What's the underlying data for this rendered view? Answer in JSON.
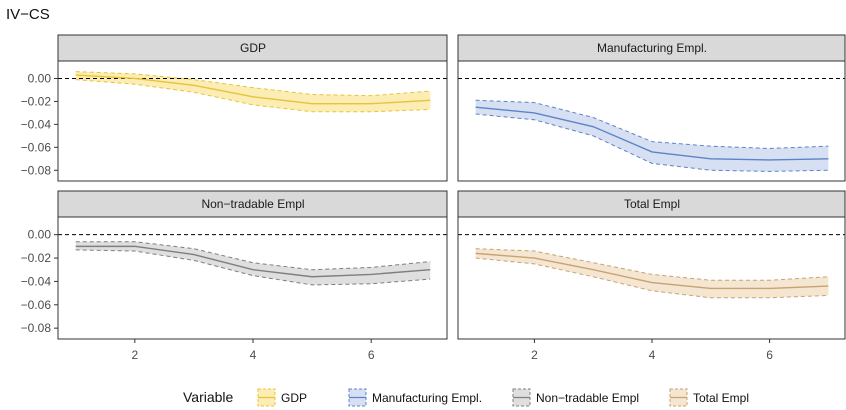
{
  "chart_data": {
    "type": "line",
    "title": "IV−CS",
    "xlabel": "",
    "ylabel": "",
    "x": [
      1,
      2,
      3,
      4,
      5,
      6,
      7
    ],
    "xlim": [
      0.7,
      7.3
    ],
    "ylim": [
      -0.085,
      0.01
    ],
    "x_ticks": [
      "2",
      "4",
      "6"
    ],
    "y_ticks": [
      "0.00",
      "−0.02",
      "−0.04",
      "−0.06",
      "−0.08"
    ],
    "reference_line": 0,
    "legend_title": "Variable",
    "legend_position": "bottom",
    "grid": false,
    "panels": [
      {
        "strip": "GDP",
        "series": "GDP",
        "color": "#E8C33A",
        "fill": "#F9E79A",
        "mean": [
          0.003,
          0.0,
          -0.006,
          -0.016,
          -0.022,
          -0.022,
          -0.019
        ],
        "lower": [
          -0.001,
          -0.005,
          -0.012,
          -0.023,
          -0.029,
          -0.029,
          -0.027
        ],
        "upper": [
          0.006,
          0.004,
          -0.001,
          -0.008,
          -0.014,
          -0.015,
          -0.011
        ]
      },
      {
        "strip": "Manufacturing Empl.",
        "series": "Manufacturing Empl.",
        "color": "#5B84C9",
        "fill": "#C9D6EE",
        "mean": [
          -0.025,
          -0.03,
          -0.042,
          -0.064,
          -0.07,
          -0.071,
          -0.07
        ],
        "lower": [
          -0.031,
          -0.036,
          -0.05,
          -0.074,
          -0.08,
          -0.081,
          -0.08
        ],
        "upper": [
          -0.019,
          -0.021,
          -0.034,
          -0.055,
          -0.059,
          -0.061,
          -0.059
        ]
      },
      {
        "strip": "Non−tradable Empl",
        "series": "Non−tradable Empl",
        "color": "#7F7F7F",
        "fill": "#D4D4D4",
        "mean": [
          -0.01,
          -0.01,
          -0.017,
          -0.03,
          -0.036,
          -0.034,
          -0.03
        ],
        "lower": [
          -0.013,
          -0.014,
          -0.022,
          -0.035,
          -0.043,
          -0.042,
          -0.038
        ],
        "upper": [
          -0.006,
          -0.006,
          -0.012,
          -0.024,
          -0.03,
          -0.028,
          -0.023
        ]
      },
      {
        "strip": "Total Empl",
        "series": "Total Empl",
        "color": "#C8A273",
        "fill": "#F0DDC2",
        "mean": [
          -0.016,
          -0.02,
          -0.03,
          -0.041,
          -0.046,
          -0.046,
          -0.044
        ],
        "lower": [
          -0.02,
          -0.025,
          -0.036,
          -0.048,
          -0.054,
          -0.054,
          -0.052
        ],
        "upper": [
          -0.012,
          -0.014,
          -0.024,
          -0.034,
          -0.039,
          -0.039,
          -0.036
        ]
      }
    ]
  }
}
